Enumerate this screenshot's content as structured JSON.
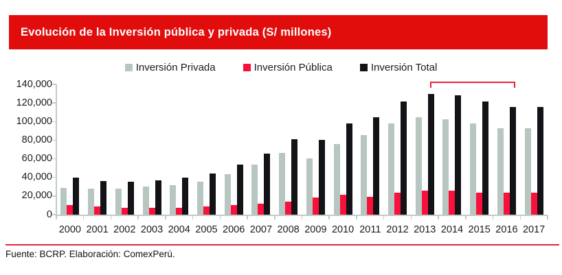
{
  "title": "Evolución de la Inversión pública y privada (S/ millones)",
  "footer": {
    "source": "Fuente: BCRP. Elaboración: ComexPerú."
  },
  "colors": {
    "header_bg": "#e10d0d",
    "divider": "#e8213d",
    "bracket": "#e8213d",
    "axis": "#c2cac6",
    "text": "#1a1a1a"
  },
  "chart_data": {
    "type": "bar",
    "categories": [
      "2000",
      "2001",
      "2002",
      "2003",
      "2004",
      "2005",
      "2006",
      "2007",
      "2008",
      "2009",
      "2010",
      "2011",
      "2012",
      "2013",
      "2014",
      "2015",
      "2016",
      "2017"
    ],
    "series": [
      {
        "name": "Inversión Privada",
        "color": "#b7c6c1",
        "values": [
          29000,
          28000,
          28000,
          30000,
          32000,
          35500,
          43500,
          53500,
          66500,
          60500,
          76000,
          85500,
          98000,
          105000,
          102500,
          98000,
          93000,
          93000
        ]
      },
      {
        "name": "Inversión Pública",
        "color": "#f9113c",
        "values": [
          10500,
          8500,
          7500,
          7500,
          7500,
          8500,
          10500,
          11500,
          14000,
          18500,
          21500,
          19500,
          23500,
          25500,
          26000,
          23500,
          23500,
          23500
        ]
      },
      {
        "name": "Inversión Total",
        "color": "#121217",
        "values": [
          40000,
          36000,
          35500,
          37000,
          39500,
          44500,
          53500,
          65500,
          81000,
          80000,
          98000,
          104500,
          121500,
          130000,
          128500,
          121500,
          115500,
          116000
        ]
      }
    ],
    "ylim": [
      0,
      140000
    ],
    "yticks": [
      0,
      20000,
      40000,
      60000,
      80000,
      100000,
      120000,
      140000
    ],
    "ytick_labels": [
      "0",
      "20,000",
      "40,000",
      "60,000",
      "80,000",
      "100,000",
      "120,000",
      "140,000"
    ],
    "grid": false,
    "legend_position": "top",
    "annotation": {
      "type": "bracket",
      "from_category": "2013",
      "to_category": "2016"
    }
  }
}
